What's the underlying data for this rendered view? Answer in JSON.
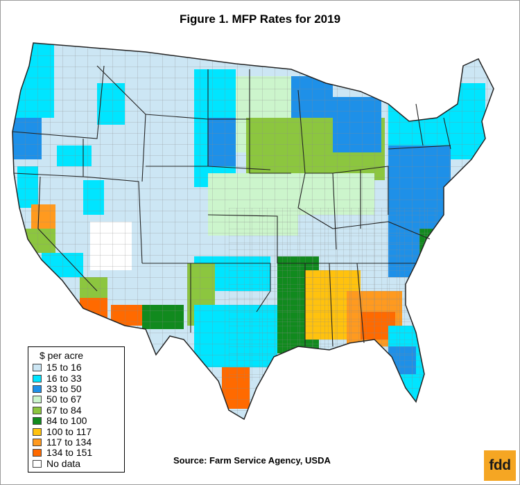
{
  "title": "Figure 1.  MFP Rates for 2019",
  "source": "Source:  Farm Service Agency, USDA",
  "logo_text": "fdd",
  "legend": {
    "title": "$ per acre",
    "items": [
      {
        "label": "15 to 16",
        "color": "#cce6f4"
      },
      {
        "label": "16 to 33",
        "color": "#00e5ff"
      },
      {
        "label": "33 to 50",
        "color": "#1e90e8"
      },
      {
        "label": "50 to 67",
        "color": "#ccf5cc"
      },
      {
        "label": "67 to 84",
        "color": "#8cc63f"
      },
      {
        "label": "84 to 100",
        "color": "#118a1e"
      },
      {
        "label": "100 to 117",
        "color": "#ffc20e"
      },
      {
        "label": "117 to 134",
        "color": "#ff9a1f"
      },
      {
        "label": "134 to 151",
        "color": "#ff6a00"
      },
      {
        "label": "No data",
        "color": "#ffffff"
      }
    ]
  },
  "colors": {
    "state_border": "#222222",
    "county_border": "#8a8a8a",
    "logo_bg": "#f5a623"
  }
}
